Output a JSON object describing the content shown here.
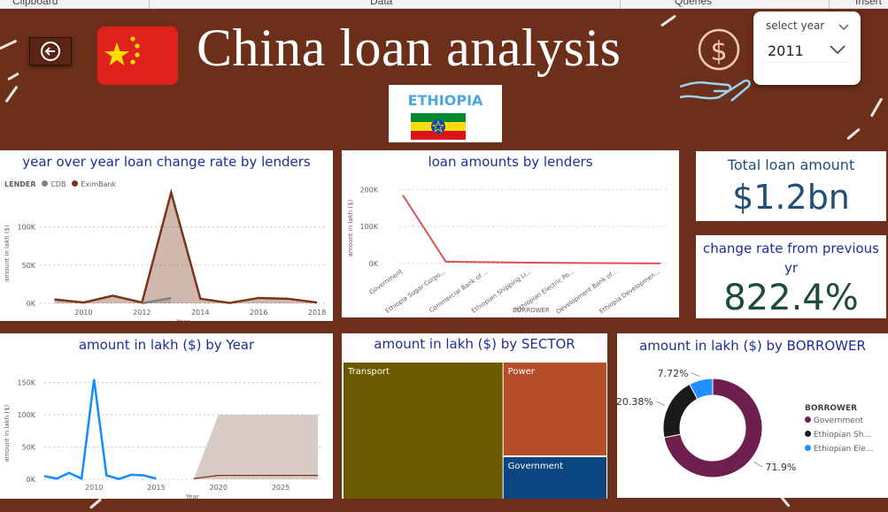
{
  "ribbon": {
    "groups": [
      "Clipboard",
      "Data",
      "Queries",
      "Insert"
    ]
  },
  "header": {
    "title": "China loan analysis",
    "back_icon": "back-arrow-icon",
    "flag_icon": "china-flag-icon",
    "money_icon": "dollar-hand-icon"
  },
  "slicer": {
    "label": "select year",
    "value": "2011"
  },
  "country": {
    "name": "ETHIOPIA",
    "flag_icon": "ethiopia-flag-icon"
  },
  "panels": {
    "yoy": {
      "title": "year over year loan change rate by lenders",
      "legend_title": "LENDER",
      "legend": [
        "CDB",
        "EximBank"
      ]
    },
    "lenders": {
      "title": "loan amounts by lenders"
    },
    "total": {
      "title": "Total loan amount",
      "value": "$1.2bn"
    },
    "change": {
      "title": "change rate from previous yr",
      "value": "822.4%"
    },
    "year": {
      "title": "amount in lakh ($) by Year"
    },
    "sector": {
      "title": "amount in lakh ($) by SECTOR"
    },
    "borrower": {
      "title": "amount in lakh ($) by BORROWER",
      "legend_title": "BORROWER",
      "legend": [
        "Government",
        "Ethiopian Sh...",
        "Ethiopian Ele..."
      ]
    }
  },
  "chart_data": [
    {
      "type": "line",
      "title": "year over year loan change rate by lenders",
      "xlabel": "Year",
      "ylabel": "amount in lakh ($)",
      "x": [
        2009,
        2010,
        2011,
        2012,
        2013,
        2014,
        2015,
        2016,
        2017,
        2018
      ],
      "xticks": [
        "2010",
        "2012",
        "2014",
        "2016",
        "2018"
      ],
      "yticks": [
        "0K",
        "50K",
        "100K"
      ],
      "ylim": [
        0,
        140000
      ],
      "series": [
        {
          "name": "EximBank",
          "color": "#7a3416",
          "values": [
            5000,
            1000,
            10000,
            1000,
            145000,
            6000,
            500,
            7000,
            6000,
            1000
          ]
        },
        {
          "name": "CDB",
          "color": "#808080",
          "values": [
            null,
            null,
            null,
            0,
            7000,
            null,
            null,
            null,
            null,
            null
          ]
        }
      ]
    },
    {
      "type": "line",
      "title": "loan amounts by lenders",
      "xlabel": "BORROWER",
      "ylabel": "amount in lakh ($)",
      "categories": [
        "Government",
        "Ethiopia Sugar Corpo...",
        "Commercial Bank of ...",
        "Ethiopian Shipping Li...",
        "Ethiopian Electric Po...",
        "Development Bank of...",
        "Ethiopia Developmen..."
      ],
      "yticks": [
        "0K",
        "100K",
        "200K"
      ],
      "ylim": [
        0,
        220000
      ],
      "series": [
        {
          "name": "",
          "color": "#d9534f",
          "values": [
            185000,
            5000,
            3500,
            2500,
            1500,
            800,
            400
          ]
        }
      ]
    },
    {
      "type": "line",
      "title": "amount in lakh ($) by Year",
      "xlabel": "Year",
      "ylabel": "amount in lakh ($)",
      "x": [
        2006,
        2007,
        2008,
        2009,
        2010,
        2011,
        2012,
        2013,
        2014,
        2015,
        2016,
        2017,
        2018
      ],
      "xticks": [
        "2010",
        "2015",
        "2020",
        "2025"
      ],
      "yticks": [
        "0K",
        "50K",
        "100K",
        "150K"
      ],
      "ylim": [
        0,
        170000
      ],
      "series": [
        {
          "name": "",
          "color": "#118dff",
          "values": [
            5000,
            1000,
            10000,
            1000,
            155000,
            6000,
            500,
            7000,
            6000,
            1000,
            null,
            null,
            null
          ]
        }
      ],
      "forecast": {
        "color": "#7a3416",
        "band_color": "#d8cbc3",
        "x": [
          2018,
          2020,
          2028
        ],
        "mid": [
          1000,
          6000,
          6000
        ],
        "upper": [
          0,
          100000,
          100000
        ],
        "lower": [
          0,
          0,
          0
        ]
      }
    },
    {
      "type": "heatmap",
      "subtype": "treemap",
      "title": "amount in lakh ($) by SECTOR",
      "categories": [
        "Transport",
        "Power",
        "Government"
      ],
      "values": [
        60.5,
        26.0,
        13.5
      ],
      "colors": [
        "#6b5a00",
        "#b44f2a",
        "#0b4680"
      ]
    },
    {
      "type": "pie",
      "subtype": "donut",
      "title": "amount in lakh ($) by BORROWER",
      "categories": [
        "Government",
        "Ethiopian Sh...",
        "Ethiopian Ele..."
      ],
      "values": [
        71.9,
        20.38,
        7.72
      ],
      "labels": [
        "71.9%",
        "20.38%",
        "7.72%"
      ],
      "colors": [
        "#6e1f4f",
        "#1a1a1a",
        "#1e90ff"
      ]
    }
  ]
}
